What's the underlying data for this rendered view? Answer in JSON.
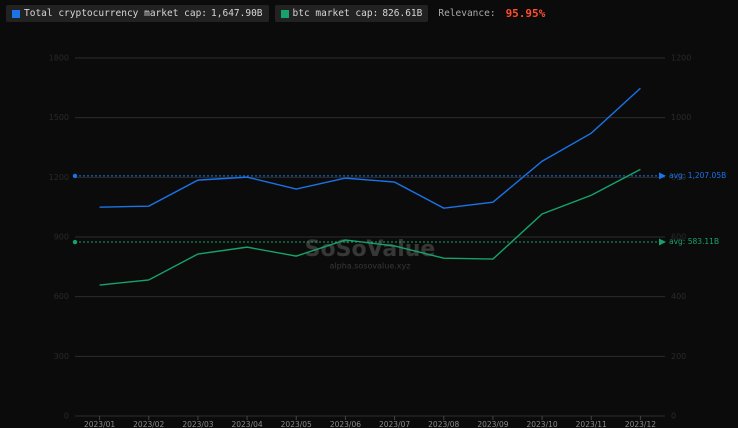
{
  "chart_data": {
    "type": "line",
    "legend": [
      {
        "name": "Total cryptocurrency market cap:",
        "latest": "1,647.90B"
      },
      {
        "name": "btc market cap:",
        "latest": "826.61B"
      }
    ],
    "relevance_label": "Relevance:",
    "relevance": {
      "value": 95.95,
      "label": "95.95%"
    },
    "watermark": "SoSoValue",
    "watermark_url": "alpha.sosovalue.xyz",
    "categories": [
      "2023/01",
      "2023/02",
      "2023/03",
      "2023/04",
      "2023/05",
      "2023/06",
      "2023/07",
      "2023/08",
      "2023/09",
      "2023/10",
      "2023/11",
      "2023/12"
    ],
    "series": [
      {
        "name": "Total cryptocurrency market cap",
        "color": "#1a73e8",
        "axis": "y",
        "values": [
          1050,
          1055,
          1186,
          1201,
          1141,
          1196,
          1176,
          1045,
          1075,
          1281,
          1422,
          1647.9
        ]
      },
      {
        "name": "btc market cap",
        "color": "#16a36b",
        "axis": "y2",
        "values": [
          439,
          456,
          543,
          566,
          536,
          590,
          570,
          529,
          526,
          677,
          740,
          826.61
        ]
      }
    ],
    "averages": [
      {
        "value": 1207.05,
        "label": "avg: 1,207.05B",
        "axis": "y",
        "color": "#1a73e8"
      },
      {
        "value": 583.11,
        "label": "avg: 583.11B",
        "axis": "y2",
        "color": "#16a36b"
      }
    ],
    "ylim": [
      0,
      1800
    ],
    "yticks": [
      0,
      300,
      600,
      900,
      1200,
      1500,
      1800
    ],
    "y2lim": [
      0,
      1200
    ],
    "y2ticks": [
      0,
      200,
      400,
      600,
      800,
      1000,
      1200
    ],
    "grid": true
  }
}
